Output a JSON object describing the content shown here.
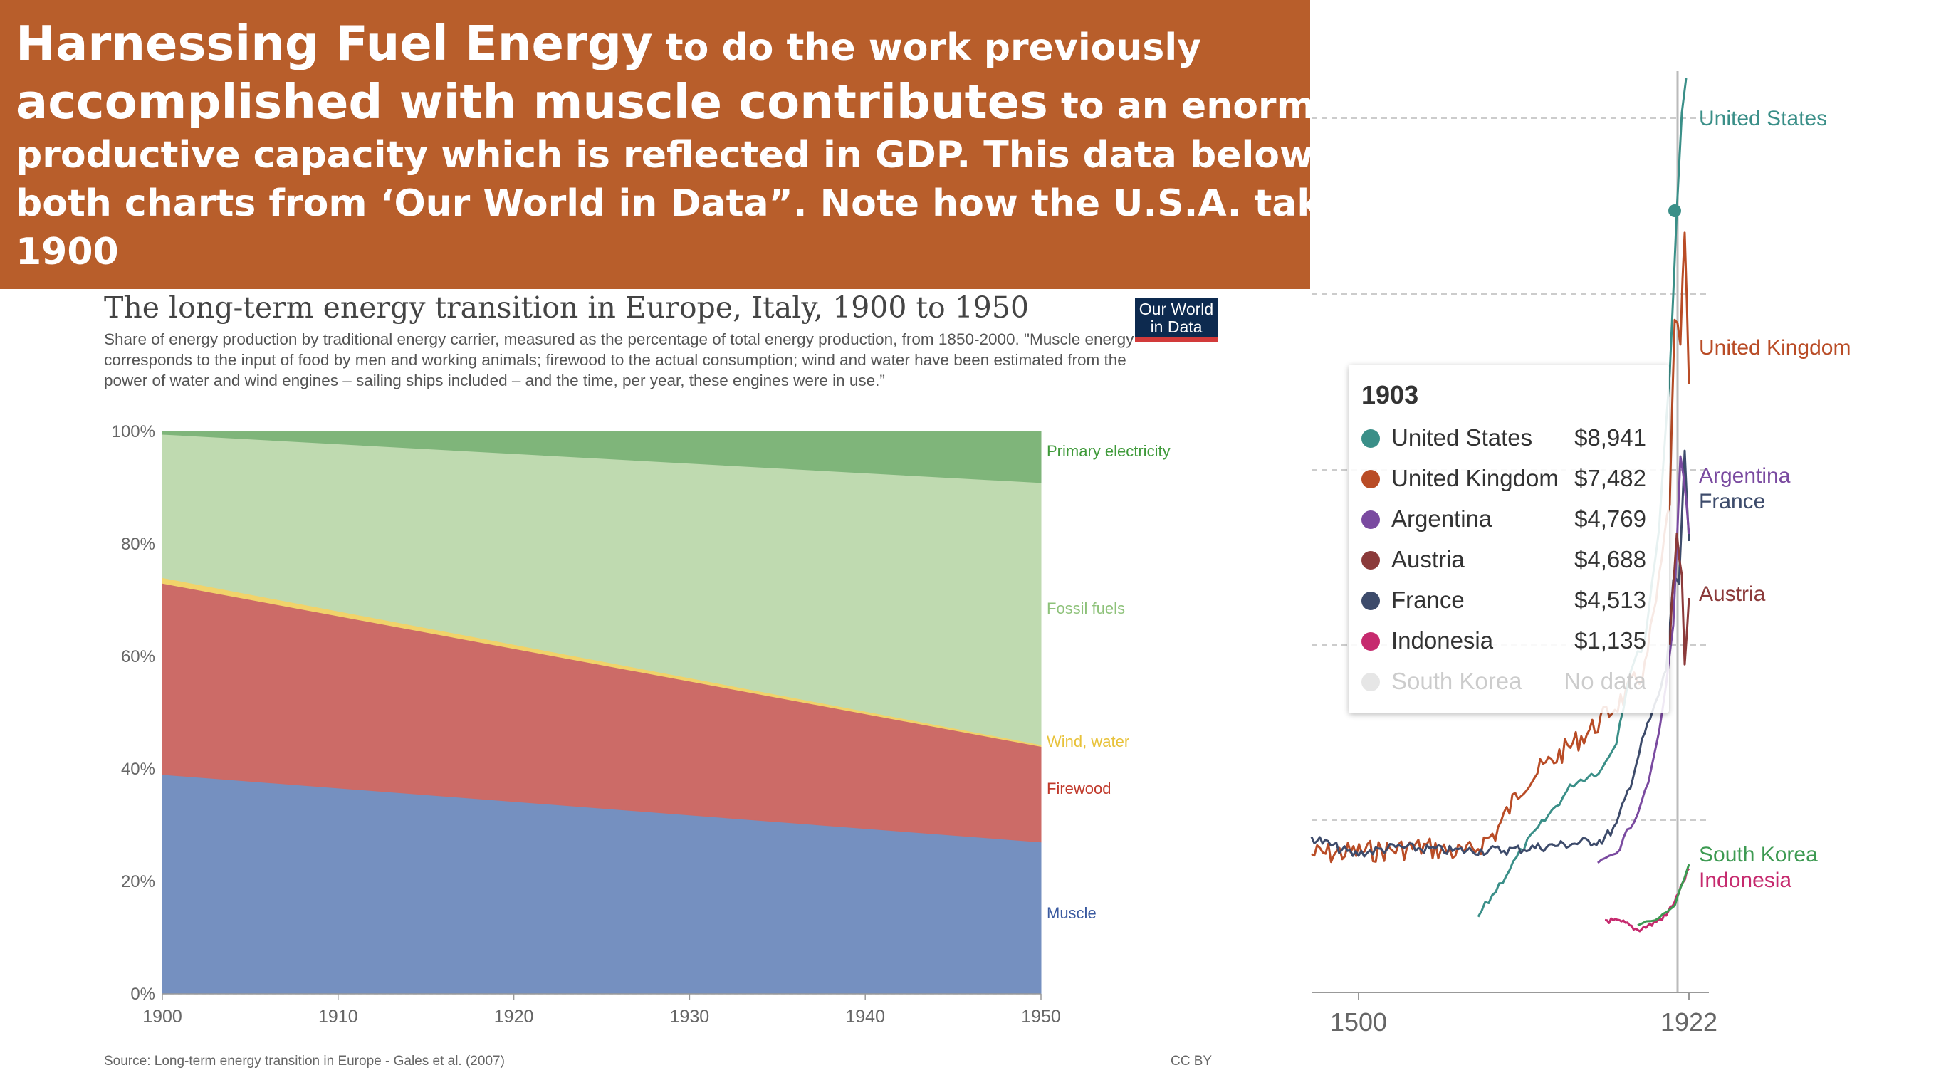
{
  "banner": {
    "line1_big": "Harnessing Fuel Energy",
    "line1_rest": " to do the work previously",
    "line2_big": "accomplished with muscle contributes",
    "line2_rest": " to an enormous rise in",
    "line3": "productive capacity which is reflected in GDP. This data below from Europe,",
    "line4": "both charts from ‘Our World in Data”. Note how the U.S.A. takes the lead afte",
    "line5": "1900"
  },
  "logo": {
    "line1": "Our World",
    "line2": "in Data"
  },
  "chart_data": [
    {
      "type": "area",
      "title": "The long-term energy transition in Europe, Italy, 1900 to 1950",
      "subtitle": "Share of energy production by traditional energy carrier, measured as the percentage of total energy production, from 1850-2000. \"Muscle energy corresponds to the input of food by men and working animals; firewood to the actual consumption; wind and water have been estimated from the power of water and wind engines – sailing ships included – and the time, per year, these engines were in use.”",
      "x": [
        1900,
        1950
      ],
      "xticks": [
        "1900",
        "1910",
        "1920",
        "1930",
        "1940",
        "1950"
      ],
      "yticks": [
        "0%",
        "20%",
        "40%",
        "60%",
        "80%",
        "100%"
      ],
      "ylim": [
        0,
        100
      ],
      "stacked": true,
      "series": [
        {
          "name": "Muscle",
          "values": [
            39,
            27
          ],
          "color": "#7590c0"
        },
        {
          "name": "Firewood",
          "values": [
            34,
            17
          ],
          "color": "#cc6b67"
        },
        {
          "name": "Wind, water",
          "values": [
            1,
            0.3
          ],
          "color": "#f1d36a"
        },
        {
          "name": "Fossil fuels",
          "values": [
            25.5,
            46.6
          ],
          "color": "#bfdab0"
        },
        {
          "name": "Primary electricity",
          "values": [
            0.5,
            9.1
          ],
          "color": "#7fb57a"
        }
      ],
      "source": "Source: Long-term energy transition in Europe - Gales et al. (2007)",
      "license": "CC BY"
    },
    {
      "type": "line",
      "xticks": [
        "1500",
        "1922"
      ],
      "series": [
        {
          "name": "United States",
          "color": "#3a8f88"
        },
        {
          "name": "United Kingdom",
          "color": "#b94c26"
        },
        {
          "name": "Argentina",
          "color": "#7a4aa0"
        },
        {
          "name": "France",
          "color": "#3d4b6b"
        },
        {
          "name": "Austria",
          "color": "#8b3a3a"
        },
        {
          "name": "South Korea",
          "color": "#3d9a52"
        },
        {
          "name": "Indonesia",
          "color": "#c62a6e"
        }
      ]
    }
  ],
  "tooltip": {
    "year": "1903",
    "rows": [
      {
        "name": "United States",
        "value": "$8,941",
        "color": "#3a8f88"
      },
      {
        "name": "United Kingdom",
        "value": "$7,482",
        "color": "#b94c26"
      },
      {
        "name": "Argentina",
        "value": "$4,769",
        "color": "#7a4aa0"
      },
      {
        "name": "Austria",
        "value": "$4,688",
        "color": "#8b3a3a"
      },
      {
        "name": "France",
        "value": "$4,513",
        "color": "#3d4b6b"
      },
      {
        "name": "Indonesia",
        "value": "$1,135",
        "color": "#c62a6e"
      },
      {
        "name": "South Korea",
        "value": "No data",
        "color": "#e6e6e6"
      }
    ]
  }
}
